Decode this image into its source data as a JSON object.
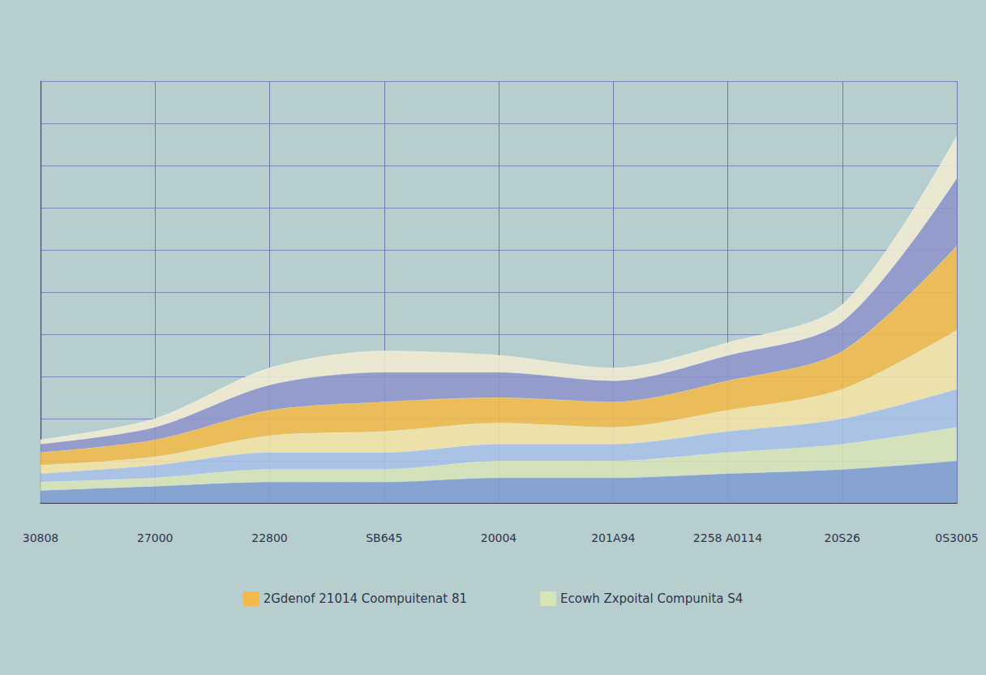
{
  "chart_data": {
    "type": "area",
    "categories": [
      "30808",
      "27000",
      "22800",
      "SB645",
      "20004",
      "201A94",
      "2258 A0114",
      "20S26",
      "0S3005"
    ],
    "series": [
      {
        "color": "#7f9dd2",
        "values": [
          3,
          4,
          5,
          5,
          6,
          6,
          7,
          8,
          10
        ]
      },
      {
        "name": "Ecowh Zxpoital Compunita S4",
        "color": "#d7e5b8",
        "values": [
          2,
          2,
          3,
          3,
          4,
          4,
          5,
          6,
          8
        ]
      },
      {
        "color": "#a8c2e8",
        "values": [
          2,
          3,
          4,
          4,
          4,
          4,
          5,
          6,
          9
        ]
      },
      {
        "color": "#f4e3a6",
        "values": [
          2,
          2,
          4,
          5,
          5,
          4,
          5,
          7,
          14
        ]
      },
      {
        "name": "2Gdenof 21014 Coompuitenat 81",
        "color": "#f2ba4a",
        "values": [
          3,
          4,
          6,
          7,
          6,
          6,
          7,
          9,
          20
        ]
      },
      {
        "color": "#8e95c9",
        "values": [
          2,
          3,
          6,
          7,
          6,
          5,
          6,
          7,
          16
        ]
      },
      {
        "color": "#f3ecd2",
        "values": [
          1,
          2,
          4,
          5,
          4,
          3,
          3,
          4,
          10
        ]
      }
    ],
    "ylim": [
      0,
      100
    ],
    "yticks": [
      0,
      10,
      20,
      30,
      40,
      50,
      60,
      70,
      80,
      90,
      100
    ],
    "stacked": true,
    "grid": true,
    "legend": "bottom",
    "tick_labels": "x"
  }
}
